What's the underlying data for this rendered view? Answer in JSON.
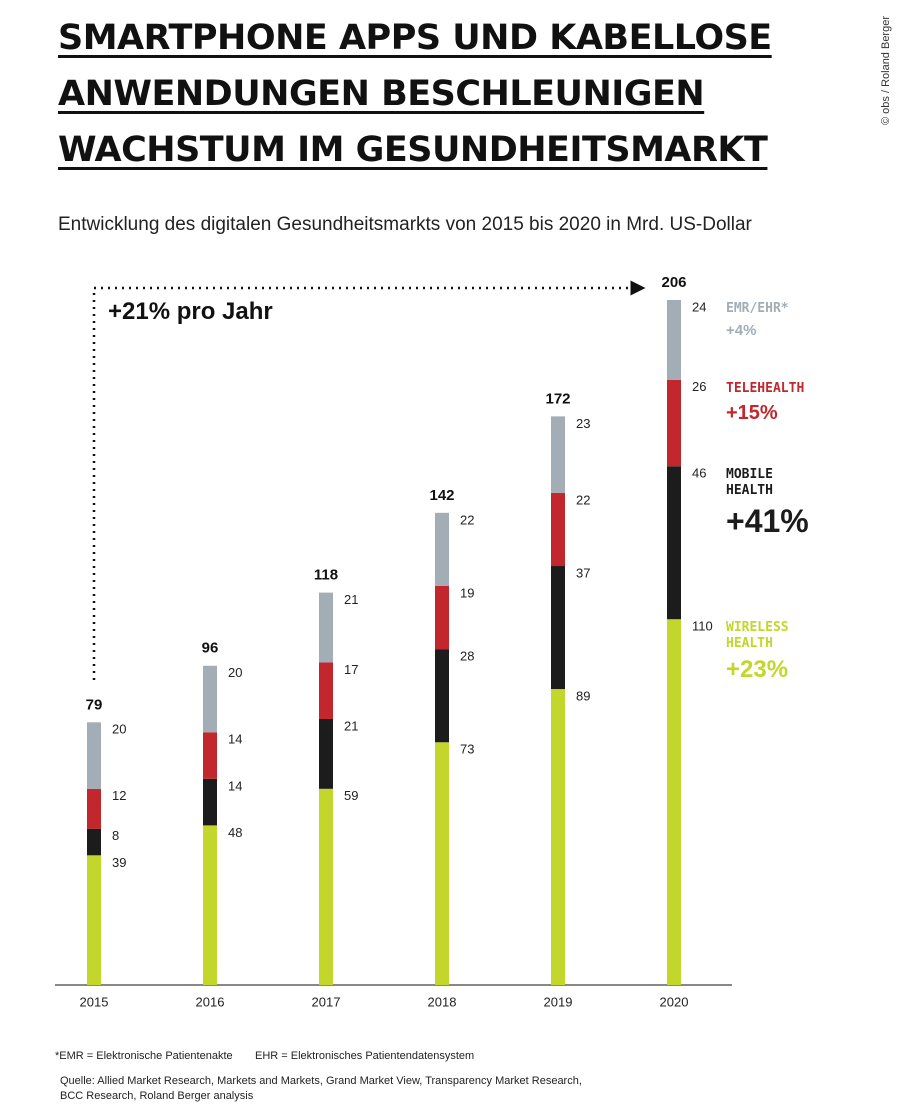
{
  "chart_data": {
    "type": "stacked_bar",
    "title": [
      "SMARTPHONE APPS UND KABELLOSE",
      "ANWENDUNGEN BESCHLEUNIGEN",
      "WACHSTUM IM GESUNDHEITSMARKT"
    ],
    "subtitle": "Entwicklung des digitalen Gesundheitsmarkts von 2015 bis 2020 in Mrd. US-Dollar",
    "annotation": "+21% pro Jahr",
    "credit": "© obs / Roland Berger",
    "categories": [
      "2015",
      "2016",
      "2017",
      "2018",
      "2019",
      "2020"
    ],
    "totals": [
      79,
      96,
      118,
      142,
      172,
      206
    ],
    "series": [
      {
        "name": "WIRELESS HEALTH",
        "color": "#c3d62c",
        "values": [
          39,
          48,
          59,
          73,
          89,
          110
        ],
        "growth": 23,
        "growth_label": "+23%"
      },
      {
        "name": "MOBILE HEALTH",
        "color": "#1c1c1c",
        "values": [
          8,
          14,
          21,
          28,
          37,
          46
        ],
        "growth": 41,
        "growth_label": "+41%"
      },
      {
        "name": "TELEHEALTH",
        "color": "#c1272d",
        "values": [
          12,
          14,
          17,
          19,
          22,
          26
        ],
        "growth": 15,
        "growth_label": "+15%"
      },
      {
        "name": "EMR/EHR*",
        "color": "#a3adb6",
        "values": [
          20,
          20,
          21,
          22,
          23,
          24
        ],
        "growth": 4,
        "growth_label": "+4%"
      }
    ],
    "footnotes": [
      "*EMR = Elektronische Patientenakte",
      "EHR = Elektronisches Patientendatensystem"
    ],
    "source": "Quelle: Allied Market Research, Markets and Markets, Grand Market View, Transparency Market Research, BCC Research, Roland Berger analysis"
  }
}
